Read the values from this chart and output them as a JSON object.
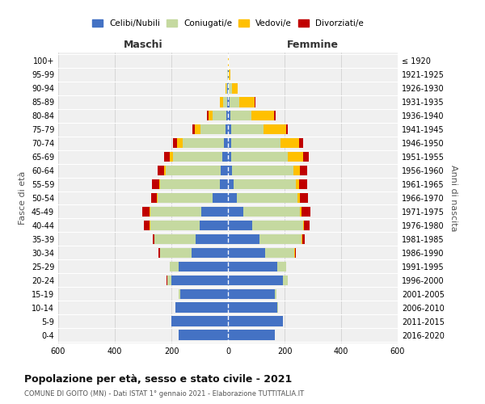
{
  "age_groups": [
    "0-4",
    "5-9",
    "10-14",
    "15-19",
    "20-24",
    "25-29",
    "30-34",
    "35-39",
    "40-44",
    "45-49",
    "50-54",
    "55-59",
    "60-64",
    "65-69",
    "70-74",
    "75-79",
    "80-84",
    "85-89",
    "90-94",
    "95-99",
    "100+"
  ],
  "birth_years": [
    "2016-2020",
    "2011-2015",
    "2006-2010",
    "2001-2005",
    "1996-2000",
    "1991-1995",
    "1986-1990",
    "1981-1985",
    "1976-1980",
    "1971-1975",
    "1966-1970",
    "1961-1965",
    "1956-1960",
    "1951-1955",
    "1946-1950",
    "1941-1945",
    "1936-1940",
    "1931-1935",
    "1926-1930",
    "1921-1925",
    "≤ 1920"
  ],
  "male": {
    "celibe": [
      175,
      200,
      185,
      170,
      200,
      175,
      130,
      115,
      100,
      95,
      55,
      30,
      25,
      20,
      15,
      8,
      5,
      3,
      2,
      1,
      0
    ],
    "coniugato": [
      0,
      0,
      2,
      5,
      15,
      30,
      110,
      145,
      175,
      180,
      195,
      210,
      195,
      175,
      145,
      90,
      50,
      15,
      5,
      1,
      0
    ],
    "vedovo": [
      0,
      0,
      0,
      0,
      0,
      0,
      0,
      1,
      1,
      2,
      2,
      3,
      5,
      10,
      20,
      20,
      15,
      10,
      3,
      1,
      0
    ],
    "divorziato": [
      0,
      0,
      0,
      0,
      2,
      2,
      5,
      5,
      20,
      25,
      20,
      25,
      25,
      20,
      15,
      8,
      5,
      2,
      0,
      0,
      0
    ]
  },
  "female": {
    "nubile": [
      165,
      195,
      175,
      165,
      195,
      175,
      130,
      110,
      85,
      55,
      30,
      20,
      15,
      12,
      10,
      10,
      8,
      5,
      3,
      2,
      1
    ],
    "coniugata": [
      0,
      0,
      2,
      5,
      15,
      30,
      105,
      150,
      180,
      200,
      215,
      220,
      215,
      200,
      175,
      115,
      75,
      35,
      10,
      2,
      0
    ],
    "vedova": [
      0,
      0,
      0,
      0,
      0,
      0,
      1,
      2,
      3,
      5,
      8,
      10,
      25,
      55,
      65,
      80,
      80,
      55,
      20,
      5,
      2
    ],
    "divorziata": [
      0,
      0,
      0,
      0,
      1,
      2,
      5,
      10,
      20,
      30,
      30,
      30,
      25,
      20,
      15,
      5,
      5,
      2,
      0,
      0,
      0
    ]
  },
  "colors": {
    "celibe": "#4472c4",
    "coniugato": "#c5d9a0",
    "vedovo": "#ffc000",
    "divorziato": "#c00000"
  },
  "title": "Popolazione per età, sesso e stato civile - 2021",
  "subtitle": "COMUNE DI GOITO (MN) - Dati ISTAT 1° gennaio 2021 - Elaborazione TUTTITALIA.IT",
  "xlabel_left": "Maschi",
  "xlabel_right": "Femmine",
  "ylabel_left": "Fasce di età",
  "ylabel_right": "Anni di nascita",
  "xlim": 600,
  "legend_labels": [
    "Celibi/Nubili",
    "Coniugati/e",
    "Vedovi/e",
    "Divorziati/e"
  ],
  "background_color": "#ffffff",
  "plot_bg_color": "#f0f0f0",
  "grid_color": "#cccccc"
}
